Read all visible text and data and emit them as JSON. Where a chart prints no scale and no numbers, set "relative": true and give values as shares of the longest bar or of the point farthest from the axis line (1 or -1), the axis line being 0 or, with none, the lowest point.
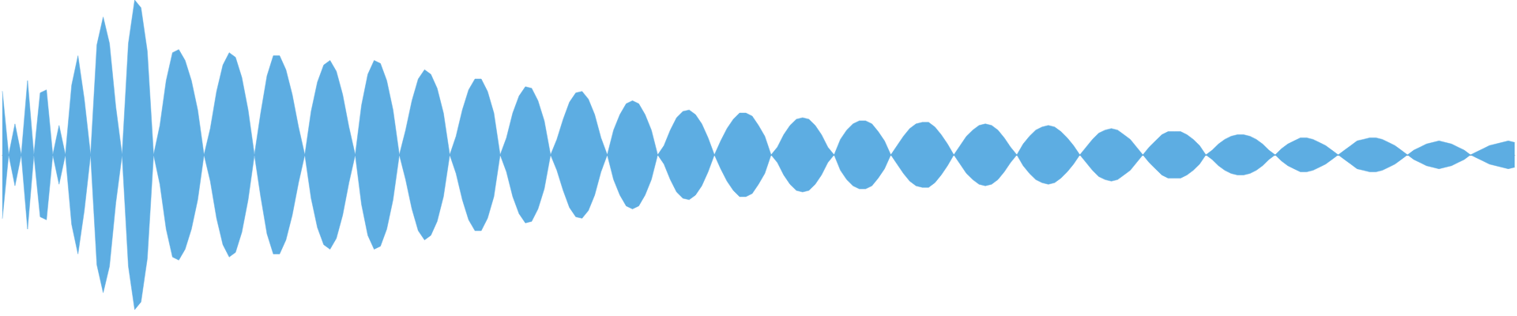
{
  "chart_data": {
    "type": "area",
    "relative": true,
    "categories": [
      null,
      null,
      null,
      null,
      null,
      null,
      null,
      null,
      null,
      null,
      null,
      null,
      null,
      null,
      null,
      null,
      null,
      null,
      null,
      null,
      null,
      null,
      null,
      null,
      null,
      null,
      null,
      null,
      null,
      null,
      null,
      null,
      null,
      null,
      null,
      null,
      null,
      null,
      null,
      null,
      null,
      null,
      null,
      null,
      null,
      null,
      null,
      null,
      null,
      null,
      null,
      null,
      null,
      null,
      null,
      null,
      null,
      null,
      null,
      null,
      null,
      null,
      null,
      null,
      null,
      null,
      null,
      null,
      null,
      null,
      null,
      null,
      null,
      null,
      null,
      null,
      null,
      null,
      null,
      null,
      null,
      null,
      null,
      null,
      null,
      null,
      null,
      null,
      null,
      null,
      null,
      null,
      null,
      null,
      null,
      null,
      null,
      null,
      null,
      null,
      null,
      null,
      null,
      null,
      null,
      null,
      null,
      null,
      null,
      null,
      null,
      null,
      null,
      null,
      null,
      null,
      null,
      null,
      null,
      null,
      null,
      null,
      null,
      null,
      null,
      null,
      null,
      null,
      null,
      null,
      null,
      null,
      null,
      null,
      null,
      null,
      null,
      null,
      null,
      null,
      null,
      null,
      null,
      null,
      null,
      null,
      null,
      null,
      null,
      null,
      null,
      null,
      null,
      null,
      null,
      null,
      null,
      null,
      null,
      null,
      null,
      null,
      null,
      null,
      null,
      null,
      null,
      null,
      null,
      null,
      null,
      null,
      null,
      null,
      null,
      null,
      null,
      null,
      null,
      null,
      null,
      null,
      null,
      null,
      null,
      null,
      null,
      null,
      null,
      null,
      null,
      null,
      null,
      null,
      null,
      null,
      null,
      null,
      null,
      null,
      null,
      null,
      null,
      null,
      null,
      null,
      null,
      null,
      null,
      null,
      null,
      null,
      null,
      null,
      null,
      null,
      null,
      null,
      null,
      null,
      null,
      null,
      null,
      null,
      null,
      null,
      null,
      null,
      null,
      null,
      null,
      null,
      null,
      null,
      null,
      null,
      null,
      null,
      null,
      null,
      null
    ],
    "series": [
      {
        "color": "#5dade2",
        "values": [
          0.41,
          0,
          0.2,
          0,
          0.48,
          0,
          0.4,
          0.42,
          0,
          0.19,
          0,
          0.45,
          0.64,
          0.36,
          0,
          0.71,
          0.89,
          0.72,
          0.31,
          0,
          0.72,
          1,
          0.95,
          0.67,
          0,
          0.19,
          0.48,
          0.66,
          0.68,
          0.61,
          0.48,
          0.29,
          0,
          0.17,
          0.41,
          0.58,
          0.66,
          0.63,
          0.5,
          0.29,
          0,
          0.27,
          0.51,
          0.64,
          0.64,
          0.55,
          0.39,
          0.18,
          0,
          0.28,
          0.47,
          0.58,
          0.61,
          0.54,
          0.39,
          0.18,
          0,
          0.32,
          0.52,
          0.61,
          0.59,
          0.48,
          0.29,
          0,
          0.16,
          0.35,
          0.49,
          0.55,
          0.52,
          0.43,
          0.27,
          0,
          0.12,
          0.29,
          0.42,
          0.49,
          0.49,
          0.41,
          0.27,
          0,
          0.11,
          0.27,
          0.38,
          0.44,
          0.43,
          0.35,
          0.22,
          0,
          0.1,
          0.23,
          0.34,
          0.4,
          0.41,
          0.36,
          0.26,
          0.11,
          0,
          0.16,
          0.26,
          0.33,
          0.35,
          0.33,
          0.26,
          0.16,
          0,
          0.06,
          0.16,
          0.24,
          0.28,
          0.29,
          0.26,
          0.2,
          0.11,
          0,
          0.09,
          0.17,
          0.23,
          0.27,
          0.27,
          0.25,
          0.19,
          0.12,
          0,
          0.05,
          0.13,
          0.19,
          0.23,
          0.24,
          0.23,
          0.19,
          0.13,
          0.05,
          0,
          0.1,
          0.16,
          0.2,
          0.22,
          0.22,
          0.2,
          0.15,
          0.09,
          0,
          0.06,
          0.12,
          0.17,
          0.2,
          0.21,
          0.21,
          0.18,
          0.13,
          0.07,
          0,
          0.06,
          0.12,
          0.16,
          0.19,
          0.2,
          0.19,
          0.16,
          0.11,
          0.05,
          0,
          0.07,
          0.12,
          0.16,
          0.18,
          0.19,
          0.18,
          0.15,
          0.11,
          0.06,
          0,
          0.05,
          0.1,
          0.14,
          0.16,
          0.17,
          0.16,
          0.13,
          0.1,
          0.05,
          0,
          0.05,
          0.09,
          0.13,
          0.15,
          0.15,
          0.15,
          0.13,
          0.1,
          0.06,
          0,
          0.03,
          0.07,
          0.1,
          0.12,
          0.13,
          0.13,
          0.12,
          0.1,
          0.07,
          0.03,
          0,
          0.04,
          0.07,
          0.09,
          0.11,
          0.11,
          0.1,
          0.08,
          0.06,
          0.03,
          0,
          0.03,
          0.06,
          0.09,
          0.1,
          0.11,
          0.11,
          0.1,
          0.08,
          0.06,
          0.03,
          0,
          0.03,
          0.05,
          0.07,
          0.08,
          0.09,
          0.08,
          0.07,
          0.05,
          0.03,
          0,
          0.02,
          0.04,
          0.06,
          0.07,
          0.08,
          0.09,
          0.08
        ]
      },
      {
        "color": "#5dade2",
        "values": [
          -0.41,
          0,
          -0.2,
          0,
          -0.48,
          0,
          -0.4,
          -0.42,
          0,
          -0.19,
          0,
          -0.45,
          -0.64,
          -0.36,
          0,
          -0.71,
          -0.89,
          -0.72,
          -0.31,
          0,
          -0.72,
          -1,
          -0.95,
          -0.67,
          0,
          -0.19,
          -0.48,
          -0.66,
          -0.68,
          -0.61,
          -0.48,
          -0.29,
          0,
          -0.17,
          -0.41,
          -0.58,
          -0.66,
          -0.63,
          -0.5,
          -0.29,
          0,
          -0.27,
          -0.51,
          -0.64,
          -0.64,
          -0.55,
          -0.39,
          -0.18,
          0,
          -0.28,
          -0.47,
          -0.58,
          -0.61,
          -0.54,
          -0.39,
          -0.18,
          0,
          -0.32,
          -0.52,
          -0.61,
          -0.59,
          -0.48,
          -0.29,
          0,
          -0.16,
          -0.35,
          -0.49,
          -0.55,
          -0.52,
          -0.43,
          -0.27,
          0,
          -0.12,
          -0.29,
          -0.42,
          -0.49,
          -0.49,
          -0.41,
          -0.27,
          0,
          -0.11,
          -0.27,
          -0.38,
          -0.44,
          -0.43,
          -0.35,
          -0.22,
          0,
          -0.1,
          -0.23,
          -0.34,
          -0.4,
          -0.41,
          -0.36,
          -0.26,
          -0.11,
          0,
          -0.16,
          -0.26,
          -0.33,
          -0.35,
          -0.33,
          -0.26,
          -0.16,
          0,
          -0.06,
          -0.16,
          -0.24,
          -0.28,
          -0.29,
          -0.26,
          -0.2,
          -0.11,
          0,
          -0.09,
          -0.17,
          -0.23,
          -0.27,
          -0.27,
          -0.25,
          -0.19,
          -0.12,
          0,
          -0.05,
          -0.13,
          -0.19,
          -0.23,
          -0.24,
          -0.23,
          -0.19,
          -0.13,
          -0.05,
          0,
          -0.1,
          -0.16,
          -0.2,
          -0.22,
          -0.22,
          -0.2,
          -0.15,
          -0.09,
          0,
          -0.06,
          -0.12,
          -0.17,
          -0.2,
          -0.21,
          -0.21,
          -0.18,
          -0.13,
          -0.07,
          0,
          -0.06,
          -0.12,
          -0.16,
          -0.19,
          -0.2,
          -0.19,
          -0.16,
          -0.11,
          -0.05,
          0,
          -0.07,
          -0.12,
          -0.16,
          -0.18,
          -0.19,
          -0.18,
          -0.15,
          -0.11,
          -0.06,
          0,
          -0.05,
          -0.1,
          -0.14,
          -0.16,
          -0.17,
          -0.16,
          -0.13,
          -0.1,
          -0.05,
          0,
          -0.05,
          -0.09,
          -0.13,
          -0.15,
          -0.15,
          -0.15,
          -0.13,
          -0.1,
          -0.06,
          0,
          -0.03,
          -0.07,
          -0.1,
          -0.12,
          -0.13,
          -0.13,
          -0.12,
          -0.1,
          -0.07,
          -0.03,
          0,
          -0.04,
          -0.07,
          -0.09,
          -0.11,
          -0.11,
          -0.1,
          -0.08,
          -0.06,
          -0.03,
          0,
          -0.03,
          -0.06,
          -0.09,
          -0.1,
          -0.11,
          -0.11,
          -0.1,
          -0.08,
          -0.06,
          -0.03,
          0,
          -0.03,
          -0.05,
          -0.07,
          -0.08,
          -0.09,
          -0.08,
          -0.07,
          -0.05,
          -0.03,
          0,
          -0.02,
          -0.04,
          -0.06,
          -0.07,
          -0.08,
          -0.09,
          -0.08
        ]
      }
    ]
  }
}
